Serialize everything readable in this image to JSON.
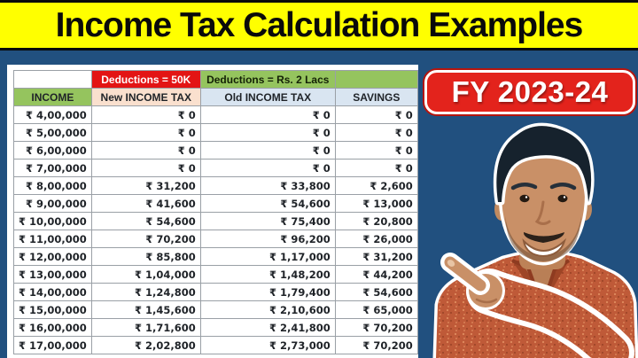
{
  "title": "Income Tax Calculation Examples",
  "badge": {
    "label": "FY 2023-24"
  },
  "table": {
    "deductions_new_label": "Deductions = 50K",
    "deductions_old_label": "Deductions = Rs. 2 Lacs",
    "columns": [
      "INCOME",
      "New INCOME TAX",
      "Old INCOME TAX",
      "SAVINGS"
    ],
    "rows": [
      [
        "₹ 4,00,000",
        "₹ 0",
        "₹ 0",
        "₹ 0"
      ],
      [
        "₹ 5,00,000",
        "₹ 0",
        "₹ 0",
        "₹ 0"
      ],
      [
        "₹ 6,00,000",
        "₹ 0",
        "₹ 0",
        "₹ 0"
      ],
      [
        "₹ 7,00,000",
        "₹ 0",
        "₹ 0",
        "₹ 0"
      ],
      [
        "₹ 8,00,000",
        "₹ 31,200",
        "₹ 33,800",
        "₹ 2,600"
      ],
      [
        "₹ 9,00,000",
        "₹ 41,600",
        "₹ 54,600",
        "₹ 13,000"
      ],
      [
        "₹ 10,00,000",
        "₹ 54,600",
        "₹ 75,400",
        "₹ 20,800"
      ],
      [
        "₹ 11,00,000",
        "₹ 70,200",
        "₹ 96,200",
        "₹ 26,000"
      ],
      [
        "₹ 12,00,000",
        "₹ 85,800",
        "₹ 1,17,000",
        "₹ 31,200"
      ],
      [
        "₹ 13,00,000",
        "₹ 1,04,000",
        "₹ 1,48,200",
        "₹ 44,200"
      ],
      [
        "₹ 14,00,000",
        "₹ 1,24,800",
        "₹ 1,79,400",
        "₹ 54,600"
      ],
      [
        "₹ 15,00,000",
        "₹ 1,45,600",
        "₹ 2,10,600",
        "₹ 65,000"
      ],
      [
        "₹ 16,00,000",
        "₹ 1,71,600",
        "₹ 2,41,800",
        "₹ 70,200"
      ],
      [
        "₹ 17,00,000",
        "₹ 2,02,800",
        "₹ 2,73,000",
        "₹ 70,200"
      ]
    ]
  },
  "colors": {
    "background_navy": "#21507F",
    "title_yellow": "#FFFF00",
    "badge_red": "#E3231C",
    "deductions_new_red": "#E31414",
    "deductions_old_green": "#95C45E",
    "income_header_green": "#95C45E",
    "new_tax_header_peach": "#FAE0CE",
    "old_tax_header_blue": "#D9E5F1"
  }
}
